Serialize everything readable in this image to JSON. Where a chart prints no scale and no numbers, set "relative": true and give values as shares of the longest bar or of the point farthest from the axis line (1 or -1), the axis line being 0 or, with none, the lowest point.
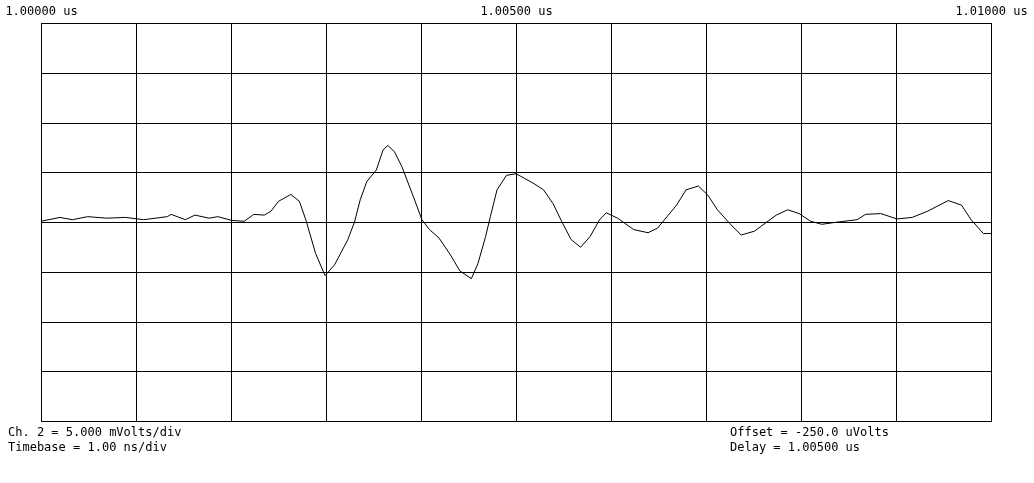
{
  "chart_data": {
    "type": "line",
    "relative": true,
    "grid": true,
    "x": [
      1.0,
      1.0002,
      1.00033,
      1.00049,
      1.00069,
      1.00089,
      1.00108,
      1.00133,
      1.00137,
      1.00152,
      1.00162,
      1.00177,
      1.00186,
      1.00201,
      1.00214,
      1.00224,
      1.00235,
      1.00242,
      1.0025,
      1.00263,
      1.00272,
      1.00279,
      1.00289,
      1.00299,
      1.00309,
      1.00323,
      1.0033,
      1.00336,
      1.00343,
      1.00353,
      1.0036,
      1.00365,
      1.00372,
      1.0038,
      1.00392,
      1.00401,
      1.00409,
      1.00419,
      1.00431,
      1.00441,
      1.00453,
      1.0046,
      1.00468,
      1.00473,
      1.0048,
      1.0049,
      1.005,
      1.00509,
      1.00519,
      1.00529,
      1.00539,
      1.00548,
      1.00558,
      1.00568,
      1.00578,
      1.00588,
      1.00595,
      1.00607,
      1.00624,
      1.00639,
      1.00649,
      1.00659,
      1.00669,
      1.00679,
      1.00692,
      1.00702,
      1.00712,
      1.00725,
      1.00737,
      1.00751,
      1.00764,
      1.00774,
      1.00786,
      1.00798,
      1.0081,
      1.00822,
      1.00839,
      1.00859,
      1.00868,
      1.00884,
      1.00901,
      1.00917,
      1.00933,
      1.00955,
      1.00969,
      1.00979,
      1.00992,
      1.01
    ],
    "series": [
      {
        "color": "#000000",
        "values": [
          0.01,
          0.06,
          0.03,
          0.07,
          0.05,
          0.06,
          0.03,
          0.07,
          0.1,
          0.03,
          0.09,
          0.05,
          0.07,
          0.02,
          0.01,
          0.1,
          0.09,
          0.14,
          0.27,
          0.36,
          0.27,
          0.02,
          -0.41,
          -0.7,
          -0.56,
          -0.23,
          0.0,
          0.29,
          0.53,
          0.68,
          0.94,
          1.0,
          0.92,
          0.72,
          0.33,
          0.03,
          -0.1,
          -0.21,
          -0.43,
          -0.64,
          -0.74,
          -0.54,
          -0.19,
          0.07,
          0.42,
          0.61,
          0.63,
          0.57,
          0.5,
          0.42,
          0.24,
          0.01,
          -0.23,
          -0.33,
          -0.19,
          0.03,
          0.12,
          0.05,
          -0.1,
          -0.14,
          -0.08,
          0.07,
          0.22,
          0.42,
          0.47,
          0.35,
          0.16,
          -0.02,
          -0.17,
          -0.12,
          0.0,
          0.09,
          0.16,
          0.11,
          0.01,
          -0.03,
          0.0,
          0.03,
          0.1,
          0.11,
          0.04,
          0.06,
          0.14,
          0.28,
          0.22,
          0.03,
          -0.15,
          -0.15
        ]
      }
    ],
    "xlim": [
      1.0,
      1.01
    ],
    "xticks": [
      {
        "value": 1.0,
        "label": "1.00000 us"
      },
      {
        "value": 1.001,
        "label": null
      },
      {
        "value": 1.002,
        "label": null
      },
      {
        "value": 1.003,
        "label": null
      },
      {
        "value": 1.004,
        "label": null
      },
      {
        "value": 1.005,
        "label": "1.00500 us"
      },
      {
        "value": 1.006,
        "label": null
      },
      {
        "value": 1.007,
        "label": null
      },
      {
        "value": 1.008,
        "label": null
      },
      {
        "value": 1.009,
        "label": null
      },
      {
        "value": 1.01,
        "label": "1.01000 us"
      }
    ],
    "annotations": [
      "Ch. 2 = 5.000 mVolts/div",
      "Timebase = 1.00 ns/div",
      "Offset = -250.0 uVolts",
      "Delay = 1.00500 us"
    ]
  }
}
